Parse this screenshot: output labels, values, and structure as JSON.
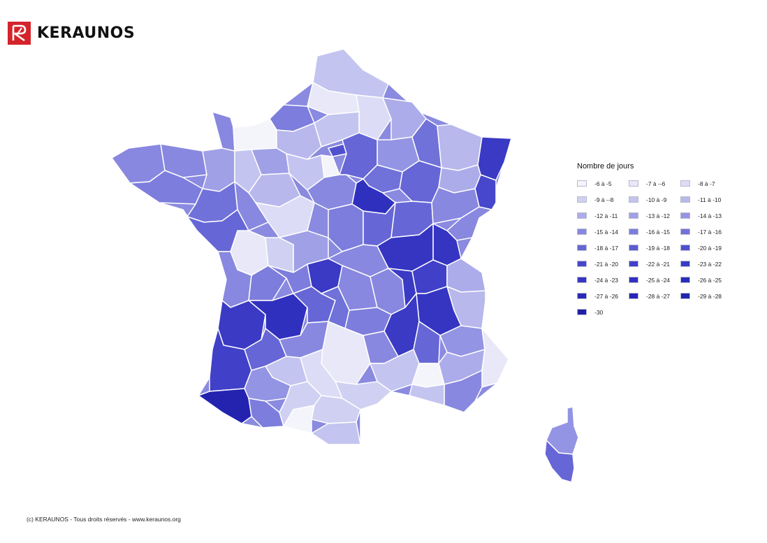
{
  "header": {
    "brand": "KERAUNOS",
    "logo_icon": "keraunos-logo-icon",
    "brand_color": "#d4232b"
  },
  "legend": {
    "title": "Nombre de jours",
    "classes": [
      {
        "label": "-6 à -5",
        "color": "#f4f4fb"
      },
      {
        "label": "-7 à --6",
        "color": "#e8e8f8"
      },
      {
        "label": "-8 à -7",
        "color": "#dcdcf6"
      },
      {
        "label": "-9 à --8",
        "color": "#d0d0f3"
      },
      {
        "label": "-10 à -9",
        "color": "#c4c4f0"
      },
      {
        "label": "-11 à -10",
        "color": "#b8b8ed"
      },
      {
        "label": "-12 à -11",
        "color": "#acacea"
      },
      {
        "label": "-13 à -12",
        "color": "#a0a0e7"
      },
      {
        "label": "-14 à -13",
        "color": "#9494e4"
      },
      {
        "label": "-15 à -14",
        "color": "#8888e0"
      },
      {
        "label": "-16 à -15",
        "color": "#7d7ddd"
      },
      {
        "label": "-17 à -16",
        "color": "#7171da"
      },
      {
        "label": "-18 à -17",
        "color": "#6666d6"
      },
      {
        "label": "-19 à -18",
        "color": "#5b5bd3"
      },
      {
        "label": "-20 à -19",
        "color": "#5050cf"
      },
      {
        "label": "-21 à -20",
        "color": "#4747cc"
      },
      {
        "label": "-22 à -21",
        "color": "#4040c8"
      },
      {
        "label": "-23 à -22",
        "color": "#3a3ac5"
      },
      {
        "label": "-24 à -23",
        "color": "#3535c2"
      },
      {
        "label": "-25 à -24",
        "color": "#3030bf"
      },
      {
        "label": "-26 à -25",
        "color": "#2c2cbc"
      },
      {
        "label": "-27 à -26",
        "color": "#2929b8"
      },
      {
        "label": "-28 à -27",
        "color": "#2626b4"
      },
      {
        "label": "-29 à -28",
        "color": "#2323b0"
      },
      {
        "label": "-30",
        "color": "#1f1fa8"
      }
    ]
  },
  "map": {
    "outline_color": "#c8c8d8"
  },
  "footer": {
    "copyright": "(c) KERAUNOS - Tous droits réservés - www.keraunos.org"
  }
}
